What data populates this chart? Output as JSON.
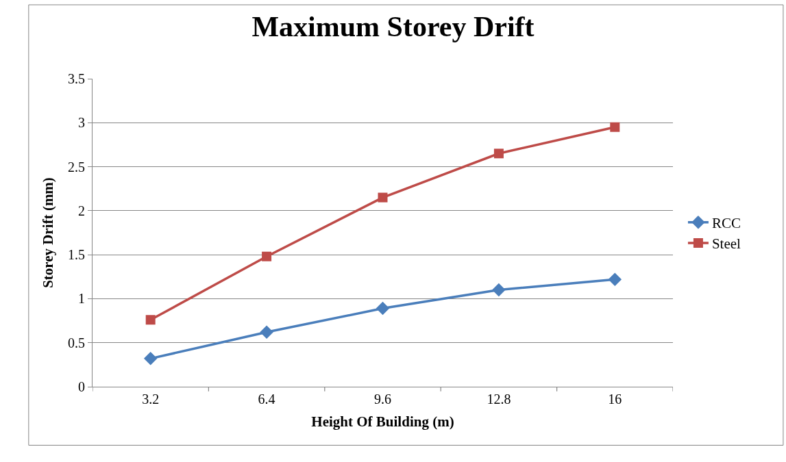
{
  "chart_data": {
    "type": "line",
    "title": "Maximum Storey Drift",
    "xlabel": "Height Of Building (m)",
    "ylabel": "Storey Drift (mm)",
    "categories": [
      "3.2",
      "6.4",
      "9.6",
      "12.8",
      "16"
    ],
    "series": [
      {
        "name": "RCC",
        "color": "#4a7ebb",
        "marker": "diamond",
        "values": [
          0.32,
          0.62,
          0.89,
          1.1,
          1.22
        ]
      },
      {
        "name": "Steel",
        "color": "#be4b48",
        "marker": "square",
        "values": [
          0.76,
          1.48,
          2.15,
          2.65,
          2.95
        ]
      }
    ],
    "ylim": [
      0,
      3.5
    ],
    "yticks": [
      0,
      0.5,
      1,
      1.5,
      2,
      2.5,
      3,
      3.5
    ],
    "grid": "y",
    "legend": "right",
    "line_style": "solid"
  }
}
